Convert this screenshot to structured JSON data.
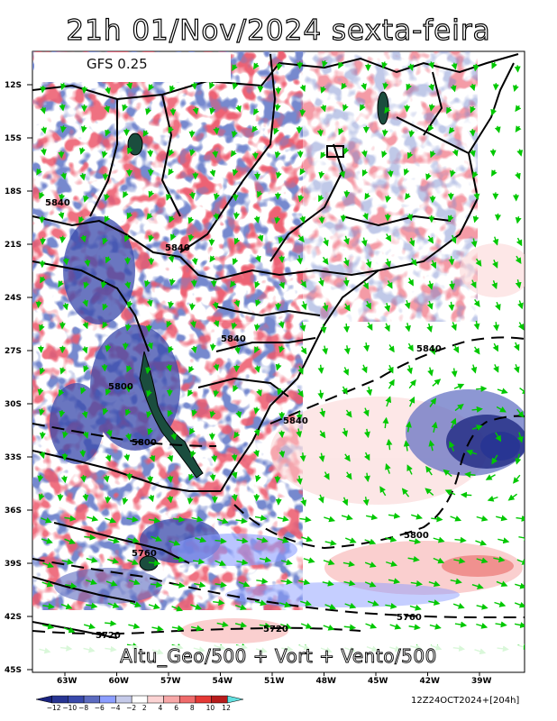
{
  "header": {
    "title": "21h 01/Nov/2024 sexta-feira"
  },
  "model": {
    "label": "GFS 0.25"
  },
  "footer": {
    "label": "Altu_Geo/500 + Vort + Vento/500",
    "run": "12Z24OCT2024+[204h]"
  },
  "axes": {
    "lat_labels": [
      "12S",
      "15S",
      "18S",
      "21S",
      "24S",
      "27S",
      "30S",
      "33S",
      "36S",
      "39S",
      "42S",
      "45S"
    ],
    "lon_labels": [
      "63W",
      "60W",
      "57W",
      "54W",
      "51W",
      "48W",
      "45W",
      "42W",
      "39W"
    ]
  },
  "contours": [
    "5840",
    "5840",
    "5840",
    "5840",
    "5840",
    "5800",
    "5800",
    "5800",
    "5760",
    "5760",
    "5720",
    "5720"
  ],
  "colorbar": {
    "ticks": [
      "−12",
      "−10",
      "−8",
      "−6",
      "−4",
      "−2",
      "2",
      "4",
      "6",
      "8",
      "10",
      "12"
    ],
    "colors": [
      "#1a237e",
      "#283593",
      "#3949ab",
      "#5c6bc0",
      "#8c9eff",
      "#c5cae9",
      "#ffffff",
      "#fbd3d3",
      "#f7a8a8",
      "#ef6b6b",
      "#e53935",
      "#b71c1c",
      "#62e0e0"
    ]
  },
  "colors": {
    "wind": "#00c800",
    "border": "#000000"
  }
}
